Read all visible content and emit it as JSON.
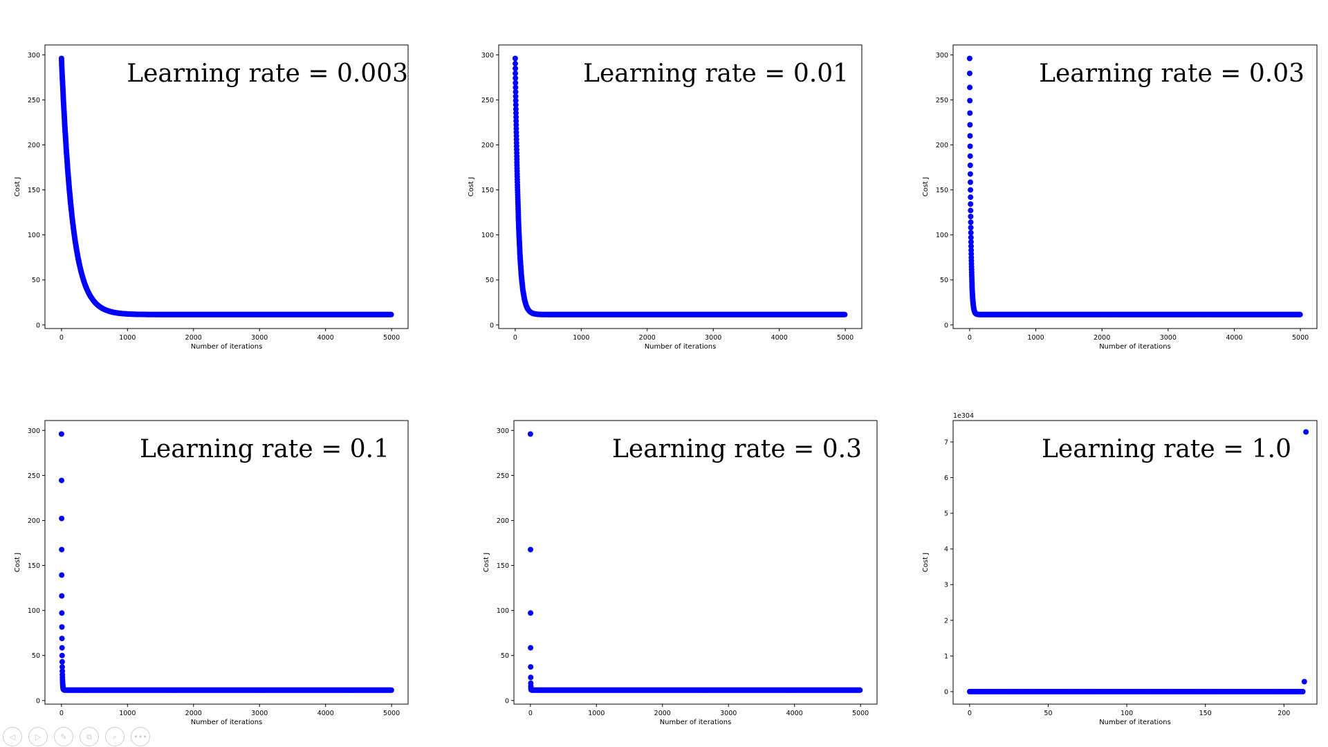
{
  "colors": {
    "marker": "#0000ff",
    "axes": "#000000",
    "background": "#ffffff"
  },
  "controls": [
    {
      "name": "previous-slide-button",
      "icon": "prev-arrow-icon",
      "glyph": "◁"
    },
    {
      "name": "next-slide-button",
      "icon": "next-arrow-icon",
      "glyph": "▷"
    },
    {
      "name": "pen-tool-button",
      "icon": "pen-icon",
      "glyph": "✎"
    },
    {
      "name": "slides-overview-button",
      "icon": "slides-icon",
      "glyph": "⧉"
    },
    {
      "name": "zoom-button",
      "icon": "magnifier-icon",
      "glyph": "⌕"
    },
    {
      "name": "more-options-button",
      "icon": "more-icon",
      "glyph": "•••"
    }
  ],
  "chart_data": [
    {
      "type": "scatter",
      "annotation": "Learning rate = 0.003",
      "learning_rate": 0.003,
      "xlabel": "Number of iterations",
      "ylabel": "Cost J",
      "xlim": [
        -250,
        5250
      ],
      "ylim": [
        -4,
        311
      ],
      "xticks": [
        0,
        1000,
        2000,
        3000,
        4000,
        5000
      ],
      "yticks": [
        0,
        50,
        100,
        150,
        200,
        250,
        300
      ],
      "offset_label": "",
      "grid": false,
      "curve": {
        "kind": "exponential_decay",
        "start": [
          0,
          296
        ],
        "floor": 11.5,
        "iterations": 5000
      }
    },
    {
      "type": "scatter",
      "annotation": "Learning rate = 0.01",
      "learning_rate": 0.01,
      "xlabel": "Number of iterations",
      "ylabel": "Cost J",
      "xlim": [
        -250,
        5250
      ],
      "ylim": [
        -4,
        311
      ],
      "xticks": [
        0,
        1000,
        2000,
        3000,
        4000,
        5000
      ],
      "yticks": [
        0,
        50,
        100,
        150,
        200,
        250,
        300
      ],
      "offset_label": "",
      "grid": false,
      "curve": {
        "kind": "exponential_decay",
        "start": [
          0,
          296
        ],
        "floor": 11.5,
        "iterations": 5000
      }
    },
    {
      "type": "scatter",
      "annotation": "Learning rate = 0.03",
      "learning_rate": 0.03,
      "xlabel": "Number of iterations",
      "ylabel": "Cost J",
      "xlim": [
        -250,
        5250
      ],
      "ylim": [
        -4,
        311
      ],
      "xticks": [
        0,
        1000,
        2000,
        3000,
        4000,
        5000
      ],
      "yticks": [
        0,
        50,
        100,
        150,
        200,
        250,
        300
      ],
      "offset_label": "",
      "grid": false,
      "curve": {
        "kind": "exponential_decay",
        "start": [
          0,
          296
        ],
        "floor": 11.5,
        "iterations": 5000
      }
    },
    {
      "type": "scatter",
      "annotation": "Learning rate = 0.1",
      "learning_rate": 0.1,
      "xlabel": "Number of iterations",
      "ylabel": "Cost J",
      "xlim": [
        -250,
        5250
      ],
      "ylim": [
        -4,
        311
      ],
      "xticks": [
        0,
        1000,
        2000,
        3000,
        4000,
        5000
      ],
      "yticks": [
        0,
        50,
        100,
        150,
        200,
        250,
        300
      ],
      "offset_label": "",
      "grid": false,
      "curve": {
        "kind": "exponential_decay",
        "start": [
          0,
          296
        ],
        "floor": 11.5,
        "iterations": 5000
      }
    },
    {
      "type": "scatter",
      "annotation": "Learning rate = 0.3",
      "learning_rate": 0.3,
      "xlabel": "Number of iterations",
      "ylabel": "Cost J",
      "xlim": [
        -250,
        5250
      ],
      "ylim": [
        -4,
        311
      ],
      "xticks": [
        0,
        1000,
        2000,
        3000,
        4000,
        5000
      ],
      "yticks": [
        0,
        50,
        100,
        150,
        200,
        250,
        300
      ],
      "offset_label": "",
      "grid": false,
      "curve": {
        "kind": "exponential_decay",
        "start": [
          0,
          296
        ],
        "floor": 11.5,
        "iterations": 5000
      }
    },
    {
      "type": "scatter",
      "annotation": "Learning rate = 1.0",
      "learning_rate": 1.0,
      "xlabel": "Number of iterations",
      "ylabel": "Cost J",
      "xlim": [
        -10.5,
        221
      ],
      "ylim": [
        -0.35,
        7.6
      ],
      "xticks": [
        0,
        50,
        100,
        150,
        200
      ],
      "yticks": [
        0,
        1,
        2,
        3,
        4,
        5,
        6,
        7
      ],
      "offset_label": "1e304",
      "grid": false,
      "points": {
        "baseline": {
          "x_from": 0,
          "x_to": 212,
          "y": 0
        },
        "extra": [
          {
            "x": 213,
            "y": 0.28
          },
          {
            "x": 214,
            "y": 7.28
          }
        ]
      }
    }
  ]
}
